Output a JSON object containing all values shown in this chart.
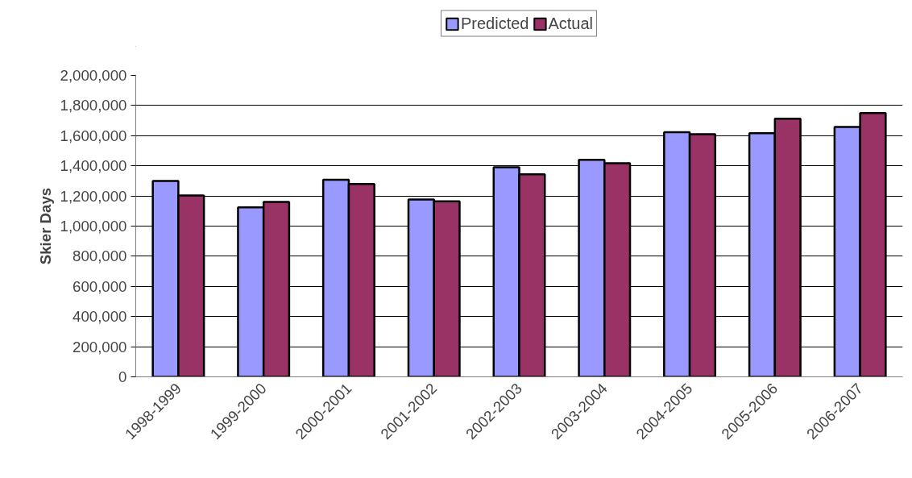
{
  "chart_data": {
    "type": "bar",
    "ylabel": "Skier Days",
    "categories": [
      "1998-1999",
      "1999-2000",
      "2000-2001",
      "2001-2002",
      "2002-2003",
      "2003-2004",
      "2004-2005",
      "2005-2006",
      "2006-2007"
    ],
    "series": [
      {
        "name": "Predicted",
        "color": "#9999ff",
        "values": [
          1300000,
          1125000,
          1307000,
          1176000,
          1390000,
          1440000,
          1623000,
          1616000,
          1658000
        ]
      },
      {
        "name": "Actual",
        "color": "#993366",
        "values": [
          1203000,
          1160000,
          1280000,
          1164000,
          1343000,
          1417000,
          1610000,
          1712000,
          1750000
        ]
      }
    ],
    "ylim": [
      0,
      2000000
    ],
    "yticks": [
      {
        "value": 0,
        "label": "0"
      },
      {
        "value": 200000,
        "label": "200,000"
      },
      {
        "value": 400000,
        "label": "400,000"
      },
      {
        "value": 600000,
        "label": "600,000"
      },
      {
        "value": 800000,
        "label": "800,000"
      },
      {
        "value": 1000000,
        "label": "1,000,000"
      },
      {
        "value": 1200000,
        "label": "1,200,000"
      },
      {
        "value": 1400000,
        "label": "1,400,000"
      },
      {
        "value": 1600000,
        "label": "1,600,000"
      },
      {
        "value": 1800000,
        "label": "1,800,000"
      },
      {
        "value": 2000000,
        "label": "2,000,000"
      }
    ],
    "grid": "y",
    "legend": "top"
  }
}
